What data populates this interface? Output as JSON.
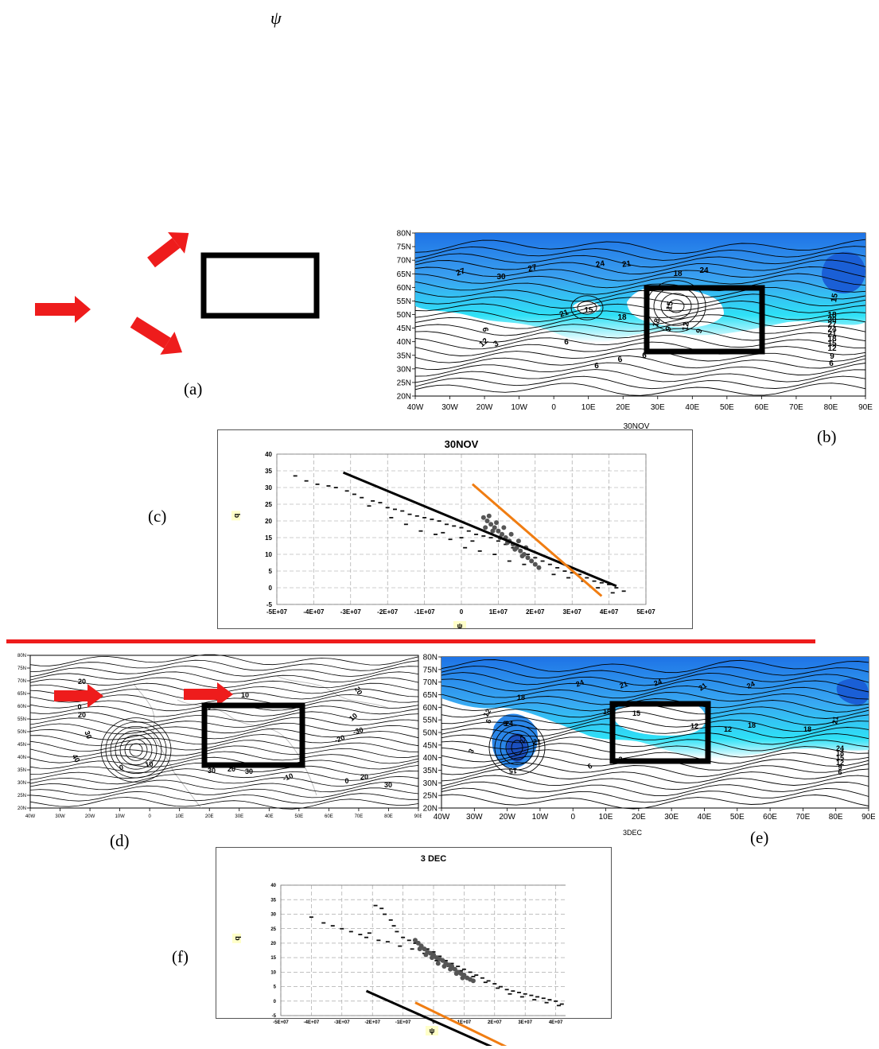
{
  "header": {
    "psi_symbol": "ψ"
  },
  "panel_labels": {
    "a": "(a)",
    "b": "(b)",
    "c": "(c)",
    "d": "(d)",
    "e": "(e)",
    "f": "(f)"
  },
  "map_axes": {
    "lat_labels": [
      "80N",
      "75N",
      "70N",
      "65N",
      "60N",
      "55N",
      "50N",
      "45N",
      "40N",
      "35N",
      "30N",
      "25N",
      "20N"
    ],
    "lon_labels": [
      "40W",
      "30W",
      "20W",
      "10W",
      "0",
      "10E",
      "20E",
      "30E",
      "40E",
      "50E",
      "60E",
      "70E",
      "80E",
      "90E"
    ]
  },
  "panel_b": {
    "date_label": "30NOV",
    "contour_labels": [
      "27",
      "30",
      "27",
      "24",
      "21",
      "18",
      "24",
      "21",
      "15",
      "18",
      "15",
      "18",
      "9",
      "12",
      "9",
      "15",
      "18",
      "30",
      "27",
      "24",
      "21",
      "18",
      "15",
      "12",
      "9",
      "6",
      "6",
      "12",
      "3",
      "6",
      "6",
      "6",
      "6"
    ]
  },
  "panel_d": {
    "contour_labels": [
      "20",
      "10",
      "0",
      "20",
      "30",
      "40",
      "0",
      "10",
      "20",
      "30",
      "10",
      "0",
      "20",
      "10",
      "-30",
      "-20",
      "-10",
      "0",
      "30",
      "20",
      "30"
    ]
  },
  "panel_e": {
    "date_label": "3DEC",
    "contour_labels": [
      "24",
      "21",
      "24",
      "21",
      "24",
      "18",
      "12",
      "6",
      "9",
      "27",
      "24",
      "21",
      "15",
      "3",
      "18",
      "15",
      "12",
      "12",
      "18",
      "18",
      "21",
      "24",
      "18",
      "15",
      "12",
      "9",
      "6",
      "3",
      "6"
    ]
  },
  "chart_data": [
    {
      "type": "scatter",
      "title": "30NOV",
      "xlabel": "ψ",
      "ylabel": "q",
      "xlim": [
        -50000000,
        50000000
      ],
      "ylim": [
        -5,
        40
      ],
      "x_tick_labels": [
        "-5E+07",
        "-4E+07",
        "-3E+07",
        "-2E+07",
        "-1E+07",
        "0",
        "1E+07",
        "2E+07",
        "3E+07",
        "4E+07",
        "5E+07"
      ],
      "y_tick_labels": [
        "-5",
        "0",
        "5",
        "10",
        "15",
        "20",
        "25",
        "30",
        "35",
        "40"
      ],
      "grid": true,
      "points": [
        [
          -45000000,
          33.5
        ],
        [
          -42000000,
          32
        ],
        [
          -39000000,
          31
        ],
        [
          -36000000,
          30.5
        ],
        [
          -34000000,
          30
        ],
        [
          -31000000,
          29
        ],
        [
          -29000000,
          28
        ],
        [
          -27000000,
          27
        ],
        [
          -24000000,
          26
        ],
        [
          -22000000,
          25.5
        ],
        [
          -20000000,
          24
        ],
        [
          -18000000,
          23.5
        ],
        [
          -16000000,
          23
        ],
        [
          -14000000,
          22
        ],
        [
          -12000000,
          21.5
        ],
        [
          -10000000,
          21
        ],
        [
          -8000000,
          20.5
        ],
        [
          -6000000,
          20
        ],
        [
          -4000000,
          19
        ],
        [
          -2000000,
          18.5
        ],
        [
          0,
          18
        ],
        [
          2000000,
          17
        ],
        [
          4000000,
          16
        ],
        [
          6000000,
          15.5
        ],
        [
          8000000,
          15
        ],
        [
          10000000,
          14
        ],
        [
          12000000,
          13
        ],
        [
          14000000,
          12
        ],
        [
          16000000,
          11
        ],
        [
          18000000,
          10
        ],
        [
          20000000,
          9
        ],
        [
          22000000,
          8
        ],
        [
          24000000,
          7
        ],
        [
          26000000,
          6
        ],
        [
          28000000,
          5
        ],
        [
          30000000,
          4.5
        ],
        [
          32000000,
          4
        ],
        [
          34000000,
          3
        ],
        [
          36000000,
          2
        ],
        [
          38000000,
          1.5
        ],
        [
          40000000,
          1
        ],
        [
          42000000,
          0
        ],
        [
          44000000,
          -1
        ],
        [
          -25000000,
          24.5
        ],
        [
          -19000000,
          21
        ],
        [
          -15000000,
          19
        ],
        [
          -11000000,
          17
        ],
        [
          -7000000,
          16
        ],
        [
          -3000000,
          14.5
        ],
        [
          1000000,
          12
        ],
        [
          5000000,
          11
        ],
        [
          9000000,
          10
        ],
        [
          13000000,
          8
        ],
        [
          17000000,
          7
        ],
        [
          21000000,
          6
        ],
        [
          25000000,
          4
        ],
        [
          29000000,
          3
        ],
        [
          33000000,
          2
        ],
        [
          37000000,
          0
        ],
        [
          41000000,
          -1.5
        ],
        [
          -5000000,
          16.5
        ],
        [
          0,
          15
        ],
        [
          3000000,
          14
        ]
      ],
      "dense_points": [
        [
          6000000,
          21
        ],
        [
          7000000,
          20
        ],
        [
          8000000,
          19
        ],
        [
          9000000,
          18
        ],
        [
          10000000,
          17
        ],
        [
          11000000,
          16
        ],
        [
          12000000,
          15
        ],
        [
          13000000,
          14
        ],
        [
          14000000,
          13
        ],
        [
          15000000,
          12
        ],
        [
          16000000,
          11
        ],
        [
          17000000,
          10
        ],
        [
          18000000,
          9
        ],
        [
          19000000,
          8
        ],
        [
          20000000,
          7
        ],
        [
          21000000,
          6
        ],
        [
          7500000,
          21.5
        ],
        [
          9500000,
          19.5
        ],
        [
          11500000,
          18
        ],
        [
          13500000,
          16
        ],
        [
          15500000,
          14
        ],
        [
          17500000,
          12
        ],
        [
          6500000,
          18
        ],
        [
          8500000,
          17
        ],
        [
          10500000,
          15
        ],
        [
          12500000,
          13.5
        ],
        [
          14500000,
          11.5
        ],
        [
          16500000,
          9.5
        ]
      ],
      "fit_lines": [
        {
          "color": "#000000",
          "x": [
            -32000000,
            42000000
          ],
          "y": [
            34.5,
            0.5
          ]
        },
        {
          "color": "#f07d12",
          "x": [
            3000000,
            38000000
          ],
          "y": [
            31,
            -2.5
          ]
        }
      ]
    },
    {
      "type": "scatter",
      "title": "3 DEC",
      "xlabel": "ψ",
      "ylabel": "q",
      "xlim": [
        -50000000,
        50000000
      ],
      "ylim": [
        -5,
        40
      ],
      "x_tick_labels": [
        "-5E+07",
        "-4E+07",
        "-3E+07",
        "-2E+07",
        "-1E+07",
        "0",
        "1E+07",
        "2E+07",
        "3E+07",
        "4E+07",
        "5E+07"
      ],
      "y_tick_labels": [
        "-5",
        "0",
        "5",
        "10",
        "15",
        "20",
        "25",
        "30",
        "35",
        "40"
      ],
      "grid": true,
      "points": [
        [
          -40000000,
          29
        ],
        [
          -36000000,
          27
        ],
        [
          -33000000,
          26
        ],
        [
          -30000000,
          25
        ],
        [
          -27000000,
          24
        ],
        [
          -24000000,
          23
        ],
        [
          -21000000,
          23.5
        ],
        [
          -19000000,
          33
        ],
        [
          -17000000,
          32
        ],
        [
          -16000000,
          30
        ],
        [
          -14000000,
          28
        ],
        [
          -13000000,
          26
        ],
        [
          -12000000,
          24
        ],
        [
          -10000000,
          22
        ],
        [
          -8000000,
          21
        ],
        [
          -6000000,
          20
        ],
        [
          -4000000,
          19
        ],
        [
          -2000000,
          18
        ],
        [
          0,
          17
        ],
        [
          2000000,
          15.5
        ],
        [
          4000000,
          14
        ],
        [
          6000000,
          13
        ],
        [
          8000000,
          12
        ],
        [
          10000000,
          11
        ],
        [
          12000000,
          10
        ],
        [
          14000000,
          9
        ],
        [
          16000000,
          8
        ],
        [
          18000000,
          7
        ],
        [
          20000000,
          6
        ],
        [
          22000000,
          5
        ],
        [
          24000000,
          4
        ],
        [
          26000000,
          3.5
        ],
        [
          28000000,
          3
        ],
        [
          30000000,
          2.5
        ],
        [
          32000000,
          2
        ],
        [
          34000000,
          1.5
        ],
        [
          36000000,
          1
        ],
        [
          38000000,
          0.5
        ],
        [
          40000000,
          0
        ],
        [
          42000000,
          -1
        ],
        [
          44000000,
          -2
        ],
        [
          -22000000,
          22
        ],
        [
          -18000000,
          21
        ],
        [
          -15000000,
          20.5
        ],
        [
          -11000000,
          19
        ],
        [
          -7000000,
          18
        ],
        [
          -3000000,
          16.5
        ],
        [
          1000000,
          14
        ],
        [
          5000000,
          12
        ],
        [
          9000000,
          10.5
        ],
        [
          13000000,
          8.5
        ],
        [
          17000000,
          6.5
        ],
        [
          21000000,
          4.5
        ],
        [
          25000000,
          2.5
        ],
        [
          29000000,
          1.5
        ],
        [
          33000000,
          0.5
        ],
        [
          37000000,
          -0.5
        ],
        [
          41000000,
          -1.5
        ]
      ],
      "dense_points": [
        [
          -6000000,
          21
        ],
        [
          -5000000,
          20
        ],
        [
          -4000000,
          19
        ],
        [
          -3000000,
          18
        ],
        [
          -2000000,
          17
        ],
        [
          -1000000,
          16.5
        ],
        [
          0,
          16
        ],
        [
          1000000,
          15
        ],
        [
          2000000,
          14.5
        ],
        [
          3000000,
          14
        ],
        [
          4000000,
          13
        ],
        [
          5000000,
          12.5
        ],
        [
          6000000,
          12
        ],
        [
          7000000,
          11
        ],
        [
          8000000,
          10
        ],
        [
          9000000,
          9.5
        ],
        [
          10000000,
          9
        ],
        [
          11000000,
          8
        ],
        [
          12000000,
          7.5
        ],
        [
          13000000,
          7
        ],
        [
          -4500000,
          18
        ],
        [
          -2500000,
          16
        ],
        [
          -500000,
          15
        ],
        [
          1500000,
          13
        ],
        [
          3500000,
          12
        ],
        [
          5500000,
          11
        ],
        [
          7500000,
          9.5
        ],
        [
          9500000,
          8
        ]
      ],
      "fit_lines": [
        {
          "color": "#000000",
          "x": [
            -22000000,
            43000000
          ],
          "y": [
            3.5,
            -27
          ]
        },
        {
          "color": "#f07d12",
          "x": [
            -6000000,
            35000000
          ],
          "y": [
            -0.5,
            -21.5
          ]
        }
      ]
    }
  ]
}
